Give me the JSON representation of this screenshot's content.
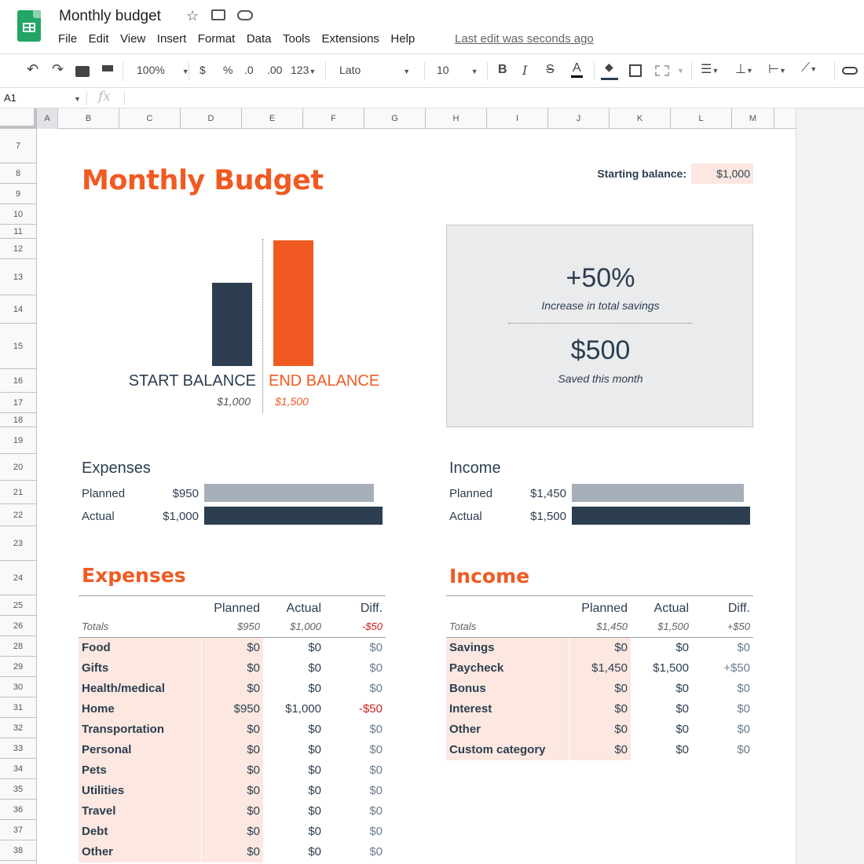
{
  "app": {
    "doc_title": "Monthly budget",
    "menu": [
      "File",
      "Edit",
      "View",
      "Insert",
      "Format",
      "Data",
      "Tools",
      "Extensions",
      "Help"
    ],
    "last_edit": "Last edit was seconds ago"
  },
  "toolbar": {
    "zoom": "100%",
    "currency": "$",
    "percent": "%",
    "dec_less": ".0",
    "dec_more": ".00",
    "more_formats": "123",
    "font": "Lato",
    "font_size": "10",
    "bold": "B",
    "italic": "I",
    "strike": "S",
    "text_color": "A"
  },
  "formula_bar": {
    "name_box": "A1",
    "fx": "fx"
  },
  "columns": [
    "A",
    "B",
    "C",
    "D",
    "E",
    "F",
    "G",
    "H",
    "I",
    "J",
    "K",
    "L",
    "M"
  ],
  "rows": [
    "7",
    "8",
    "9",
    "10",
    "11",
    "12",
    "13",
    "14",
    "15",
    "16",
    "17",
    "18",
    "19",
    "20",
    "21",
    "22",
    "23",
    "24",
    "25",
    "26",
    "28",
    "29",
    "30",
    "31",
    "32",
    "33",
    "34",
    "35",
    "36",
    "37",
    "38"
  ],
  "sheet": {
    "title": "Monthly Budget",
    "starting_balance_label": "Starting balance:",
    "starting_balance_value": "$1,000",
    "balance_chart": {
      "start_label": "START BALANCE",
      "end_label": "END BALANCE",
      "start_value": "$1,000",
      "end_value": "$1,500",
      "start_amount": 1000,
      "end_amount": 1500
    },
    "summary": {
      "percent": "+50%",
      "percent_label": "Increase in total savings",
      "saved": "$500",
      "saved_label": "Saved this month"
    },
    "expenses_compare": {
      "title": "Expenses",
      "planned_label": "Planned",
      "planned_value": "$950",
      "actual_label": "Actual",
      "actual_value": "$1,000",
      "planned_amount": 950,
      "actual_amount": 1000
    },
    "income_compare": {
      "title": "Income",
      "planned_label": "Planned",
      "planned_value": "$1,450",
      "actual_label": "Actual",
      "actual_value": "$1,500",
      "planned_amount": 1450,
      "actual_amount": 1500
    },
    "expenses_table": {
      "title": "Expenses",
      "headers": {
        "planned": "Planned",
        "actual": "Actual",
        "diff": "Diff."
      },
      "totals": {
        "label": "Totals",
        "planned": "$950",
        "actual": "$1,000",
        "diff": "-$50"
      },
      "rows": [
        {
          "category": "Food",
          "planned": "$0",
          "actual": "$0",
          "diff": "$0"
        },
        {
          "category": "Gifts",
          "planned": "$0",
          "actual": "$0",
          "diff": "$0"
        },
        {
          "category": "Health/medical",
          "planned": "$0",
          "actual": "$0",
          "diff": "$0"
        },
        {
          "category": "Home",
          "planned": "$950",
          "actual": "$1,000",
          "diff": "-$50"
        },
        {
          "category": "Transportation",
          "planned": "$0",
          "actual": "$0",
          "diff": "$0"
        },
        {
          "category": "Personal",
          "planned": "$0",
          "actual": "$0",
          "diff": "$0"
        },
        {
          "category": "Pets",
          "planned": "$0",
          "actual": "$0",
          "diff": "$0"
        },
        {
          "category": "Utilities",
          "planned": "$0",
          "actual": "$0",
          "diff": "$0"
        },
        {
          "category": "Travel",
          "planned": "$0",
          "actual": "$0",
          "diff": "$0"
        },
        {
          "category": "Debt",
          "planned": "$0",
          "actual": "$0",
          "diff": "$0"
        },
        {
          "category": "Other",
          "planned": "$0",
          "actual": "$0",
          "diff": "$0"
        }
      ]
    },
    "income_table": {
      "title": "Income",
      "headers": {
        "planned": "Planned",
        "actual": "Actual",
        "diff": "Diff."
      },
      "totals": {
        "label": "Totals",
        "planned": "$1,450",
        "actual": "$1,500",
        "diff": "+$50"
      },
      "rows": [
        {
          "category": "Savings",
          "planned": "$0",
          "actual": "$0",
          "diff": "$0"
        },
        {
          "category": "Paycheck",
          "planned": "$1,450",
          "actual": "$1,500",
          "diff": "+$50"
        },
        {
          "category": "Bonus",
          "planned": "$0",
          "actual": "$0",
          "diff": "$0"
        },
        {
          "category": "Interest",
          "planned": "$0",
          "actual": "$0",
          "diff": "$0"
        },
        {
          "category": "Other",
          "planned": "$0",
          "actual": "$0",
          "diff": "$0"
        },
        {
          "category": "Custom category",
          "planned": "$0",
          "actual": "$0",
          "diff": "$0"
        }
      ]
    }
  },
  "colors": {
    "navy": "#2c3e50",
    "orange": "#f05a22",
    "peach": "#fce8e0",
    "grey_bar": "#a6afb9",
    "negative": "#cc1f1f"
  }
}
